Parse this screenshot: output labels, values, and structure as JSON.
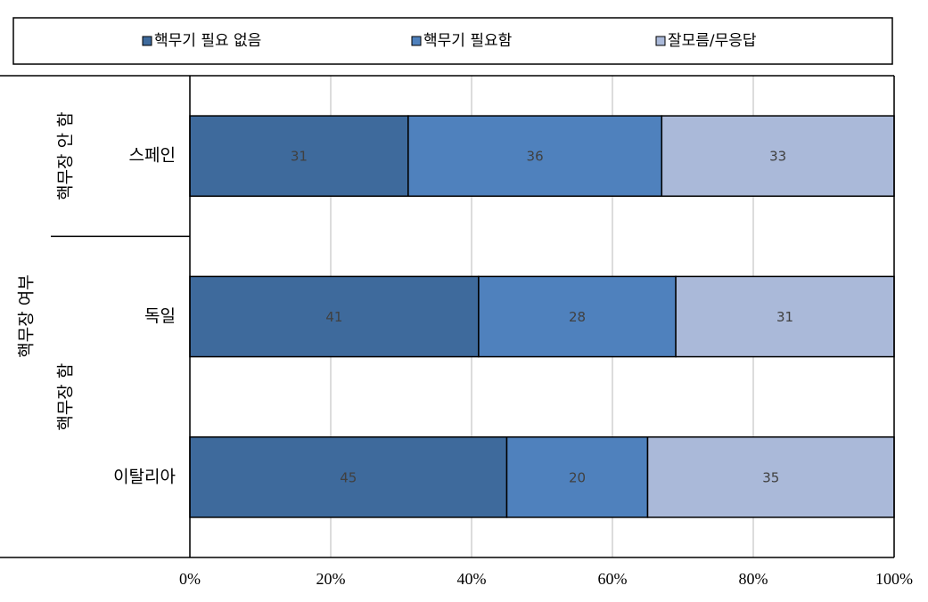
{
  "chart_data": {
    "type": "stacked-bar-horizontal",
    "ylabel": "핵무장 여부",
    "group_labels": [
      "핵무장 안 함",
      "핵무장 함"
    ],
    "categories": [
      "스페인",
      "독일",
      "이탈리아"
    ],
    "series": [
      {
        "name": "핵무기 필요 없음",
        "color": "#3e6a9c",
        "values": [
          31,
          41,
          45
        ]
      },
      {
        "name": "핵무기 필요함",
        "color": "#4f81bd",
        "values": [
          36,
          28,
          20
        ]
      },
      {
        "name": "잘모름/무응답",
        "color": "#aab9d9",
        "values": [
          33,
          31,
          35
        ]
      }
    ],
    "xlim": [
      0,
      100
    ],
    "xticks": [
      {
        "value": 0,
        "label": "0%"
      },
      {
        "value": 20,
        "label": "20%"
      },
      {
        "value": 40,
        "label": "40%"
      },
      {
        "value": 60,
        "label": "60%"
      },
      {
        "value": 80,
        "label": "80%"
      },
      {
        "value": 100,
        "label": "100%"
      }
    ],
    "grid": true,
    "legend": "top"
  }
}
